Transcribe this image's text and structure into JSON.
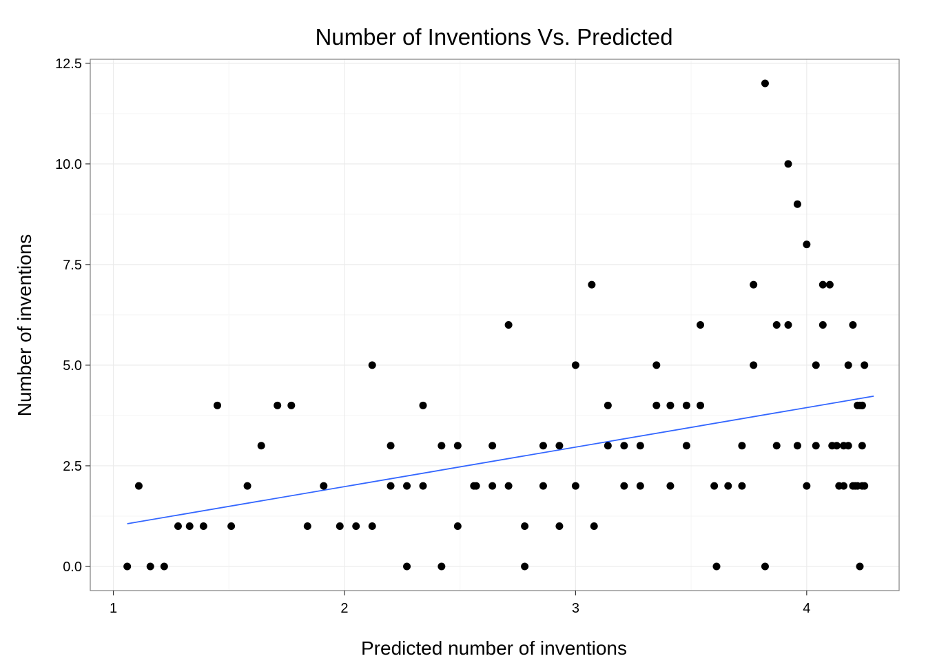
{
  "chart_data": {
    "type": "scatter",
    "title": "Number of Inventions Vs. Predicted",
    "xlabel": "Predicted number of inventions",
    "ylabel": "Number of inventions",
    "xlim": [
      0.9,
      4.4
    ],
    "ylim": [
      -0.6,
      12.6
    ],
    "x_ticks": [
      1,
      2,
      3,
      4
    ],
    "x_tick_labels": [
      "1",
      "2",
      "3",
      "4"
    ],
    "y_ticks": [
      0,
      2.5,
      5,
      7.5,
      10,
      12.5
    ],
    "y_tick_labels": [
      "0.0",
      "2.5",
      "5.0",
      "7.5",
      "10.0",
      "12.5"
    ],
    "grid": true,
    "point_color": "#000000",
    "trend_line": {
      "color": "#3366FF",
      "start": {
        "x": 1.06,
        "y": 1.06
      },
      "end": {
        "x": 4.29,
        "y": 4.23
      }
    },
    "points": [
      {
        "x": 1.06,
        "y": 0
      },
      {
        "x": 1.11,
        "y": 2
      },
      {
        "x": 1.16,
        "y": 0
      },
      {
        "x": 1.22,
        "y": 0
      },
      {
        "x": 1.28,
        "y": 1
      },
      {
        "x": 1.33,
        "y": 1
      },
      {
        "x": 1.39,
        "y": 1
      },
      {
        "x": 1.45,
        "y": 4
      },
      {
        "x": 1.51,
        "y": 1
      },
      {
        "x": 1.58,
        "y": 2
      },
      {
        "x": 1.64,
        "y": 3
      },
      {
        "x": 1.71,
        "y": 4
      },
      {
        "x": 1.77,
        "y": 4
      },
      {
        "x": 1.84,
        "y": 1
      },
      {
        "x": 1.91,
        "y": 2
      },
      {
        "x": 1.98,
        "y": 1
      },
      {
        "x": 2.05,
        "y": 1
      },
      {
        "x": 2.12,
        "y": 5
      },
      {
        "x": 2.12,
        "y": 1
      },
      {
        "x": 2.2,
        "y": 3
      },
      {
        "x": 2.2,
        "y": 2
      },
      {
        "x": 2.27,
        "y": 2
      },
      {
        "x": 2.27,
        "y": 0
      },
      {
        "x": 2.34,
        "y": 4
      },
      {
        "x": 2.34,
        "y": 2
      },
      {
        "x": 2.42,
        "y": 3
      },
      {
        "x": 2.42,
        "y": 0
      },
      {
        "x": 2.49,
        "y": 3
      },
      {
        "x": 2.49,
        "y": 1
      },
      {
        "x": 2.56,
        "y": 2
      },
      {
        "x": 2.57,
        "y": 2
      },
      {
        "x": 2.64,
        "y": 3
      },
      {
        "x": 2.64,
        "y": 2
      },
      {
        "x": 2.71,
        "y": 6
      },
      {
        "x": 2.71,
        "y": 2
      },
      {
        "x": 2.78,
        "y": 1
      },
      {
        "x": 2.78,
        "y": 0
      },
      {
        "x": 2.86,
        "y": 3
      },
      {
        "x": 2.86,
        "y": 2
      },
      {
        "x": 2.93,
        "y": 3
      },
      {
        "x": 2.93,
        "y": 1
      },
      {
        "x": 3.0,
        "y": 5
      },
      {
        "x": 3.0,
        "y": 2
      },
      {
        "x": 3.07,
        "y": 7
      },
      {
        "x": 3.08,
        "y": 1
      },
      {
        "x": 3.14,
        "y": 4
      },
      {
        "x": 3.14,
        "y": 3
      },
      {
        "x": 3.21,
        "y": 3
      },
      {
        "x": 3.21,
        "y": 2
      },
      {
        "x": 3.28,
        "y": 3
      },
      {
        "x": 3.28,
        "y": 2
      },
      {
        "x": 3.35,
        "y": 5
      },
      {
        "x": 3.35,
        "y": 4
      },
      {
        "x": 3.41,
        "y": 4
      },
      {
        "x": 3.41,
        "y": 2
      },
      {
        "x": 3.48,
        "y": 4
      },
      {
        "x": 3.48,
        "y": 3
      },
      {
        "x": 3.54,
        "y": 6
      },
      {
        "x": 3.54,
        "y": 4
      },
      {
        "x": 3.6,
        "y": 2
      },
      {
        "x": 3.61,
        "y": 0
      },
      {
        "x": 3.66,
        "y": 2
      },
      {
        "x": 3.72,
        "y": 3
      },
      {
        "x": 3.72,
        "y": 2
      },
      {
        "x": 3.77,
        "y": 7
      },
      {
        "x": 3.77,
        "y": 5
      },
      {
        "x": 3.82,
        "y": 12
      },
      {
        "x": 3.82,
        "y": 0
      },
      {
        "x": 3.87,
        "y": 6
      },
      {
        "x": 3.87,
        "y": 3
      },
      {
        "x": 3.92,
        "y": 10
      },
      {
        "x": 3.92,
        "y": 6
      },
      {
        "x": 3.96,
        "y": 9
      },
      {
        "x": 3.96,
        "y": 3
      },
      {
        "x": 4.0,
        "y": 8
      },
      {
        "x": 4.0,
        "y": 2
      },
      {
        "x": 4.04,
        "y": 5
      },
      {
        "x": 4.04,
        "y": 3
      },
      {
        "x": 4.07,
        "y": 7
      },
      {
        "x": 4.07,
        "y": 6
      },
      {
        "x": 4.1,
        "y": 7
      },
      {
        "x": 4.11,
        "y": 3
      },
      {
        "x": 4.13,
        "y": 3
      },
      {
        "x": 4.14,
        "y": 2
      },
      {
        "x": 4.16,
        "y": 3
      },
      {
        "x": 4.16,
        "y": 2
      },
      {
        "x": 4.18,
        "y": 5
      },
      {
        "x": 4.18,
        "y": 3
      },
      {
        "x": 4.2,
        "y": 6
      },
      {
        "x": 4.2,
        "y": 2
      },
      {
        "x": 4.21,
        "y": 2
      },
      {
        "x": 4.22,
        "y": 4
      },
      {
        "x": 4.22,
        "y": 2
      },
      {
        "x": 4.23,
        "y": 4
      },
      {
        "x": 4.23,
        "y": 0
      },
      {
        "x": 4.24,
        "y": 4
      },
      {
        "x": 4.24,
        "y": 3
      },
      {
        "x": 4.24,
        "y": 2
      },
      {
        "x": 4.25,
        "y": 5
      },
      {
        "x": 4.25,
        "y": 2
      },
      {
        "x": 4.24,
        "y": 4
      }
    ]
  }
}
